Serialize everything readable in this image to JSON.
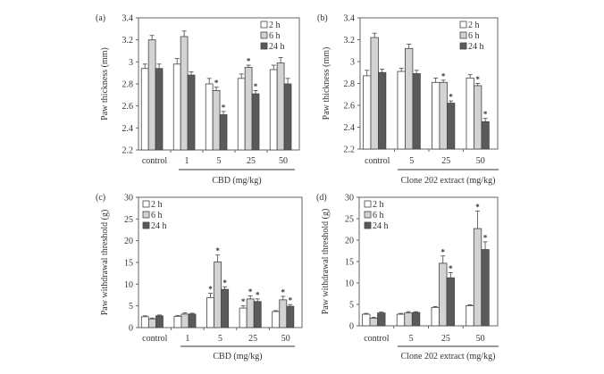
{
  "figure": {
    "colors": {
      "2h": "#ffffff",
      "6h": "#d3d3d3",
      "24h": "#5a5a5a",
      "stroke": "#444444"
    }
  },
  "chart_data": [
    {
      "id": "a",
      "type": "bar",
      "panel_label": "(a)",
      "ylabel": "Paw thickness (mm)",
      "xlabel": "CBD (mg/kg)",
      "categories": [
        "control",
        "1",
        "5",
        "25",
        "50"
      ],
      "ylim": [
        2.2,
        3.4
      ],
      "yticks": [
        "2.2",
        "2.4",
        "2.6",
        "2.8",
        "3",
        "3.2",
        "3.4"
      ],
      "legend": [
        "2 h",
        "6 h",
        "24 h"
      ],
      "legend_position": "top-right",
      "series": [
        {
          "name": "2 h",
          "values": [
            2.94,
            2.98,
            2.8,
            2.85,
            2.93
          ],
          "errors": [
            0.04,
            0.05,
            0.05,
            0.04,
            0.04
          ],
          "significant": [
            false,
            false,
            false,
            false,
            false
          ]
        },
        {
          "name": "6 h",
          "values": [
            3.2,
            3.23,
            2.74,
            2.95,
            2.99
          ],
          "errors": [
            0.04,
            0.05,
            0.03,
            0.02,
            0.05
          ],
          "significant": [
            false,
            false,
            true,
            true,
            false
          ]
        },
        {
          "name": "24 h",
          "values": [
            2.94,
            2.88,
            2.52,
            2.71,
            2.8
          ],
          "errors": [
            0.04,
            0.03,
            0.03,
            0.03,
            0.05
          ],
          "significant": [
            false,
            false,
            true,
            true,
            false
          ]
        }
      ]
    },
    {
      "id": "b",
      "type": "bar",
      "panel_label": "(b)",
      "ylabel": "Paw thickness (mm)",
      "xlabel": "Clone 202 extract (mg/kg)",
      "categories": [
        "control",
        "5",
        "25",
        "50"
      ],
      "ylim": [
        2.2,
        3.4
      ],
      "yticks": [
        "2.2",
        "2.4",
        "2.6",
        "2.8",
        "3",
        "3.2",
        "3.4"
      ],
      "legend": [
        "2 h",
        "6 h",
        "24 h"
      ],
      "legend_position": "top-right",
      "series": [
        {
          "name": "2 h",
          "values": [
            2.87,
            2.91,
            2.81,
            2.85
          ],
          "errors": [
            0.05,
            0.03,
            0.04,
            0.03
          ],
          "significant": [
            false,
            false,
            false,
            false
          ]
        },
        {
          "name": "6 h",
          "values": [
            3.22,
            3.12,
            2.81,
            2.78
          ],
          "errors": [
            0.04,
            0.04,
            0.02,
            0.02
          ],
          "significant": [
            false,
            false,
            true,
            true
          ]
        },
        {
          "name": "24 h",
          "values": [
            2.9,
            2.89,
            2.62,
            2.45
          ],
          "errors": [
            0.03,
            0.03,
            0.02,
            0.03
          ],
          "significant": [
            false,
            false,
            true,
            true
          ]
        }
      ]
    },
    {
      "id": "c",
      "type": "bar",
      "panel_label": "(c)",
      "ylabel": "Paw withdrawal threshold (g)",
      "xlabel": "CBD (mg/kg)",
      "categories": [
        "control",
        "1",
        "5",
        "25",
        "50"
      ],
      "ylim": [
        0,
        30
      ],
      "yticks": [
        "0",
        "5",
        "10",
        "15",
        "20",
        "25",
        "30"
      ],
      "legend": [
        "2 h",
        "6 h",
        "24 h"
      ],
      "legend_position": "top-left",
      "series": [
        {
          "name": "2 h",
          "values": [
            2.5,
            2.6,
            6.9,
            4.5,
            3.7
          ],
          "errors": [
            0.2,
            0.2,
            1.0,
            0.5,
            0.2
          ],
          "significant": [
            false,
            false,
            true,
            true,
            false
          ]
        },
        {
          "name": "6 h",
          "values": [
            2.0,
            3.1,
            15.1,
            6.6,
            6.4
          ],
          "errors": [
            0.2,
            0.3,
            1.6,
            0.7,
            0.8
          ],
          "significant": [
            false,
            false,
            true,
            true,
            true
          ]
        },
        {
          "name": "24 h",
          "values": [
            2.7,
            3.1,
            8.8,
            6.0,
            4.9
          ],
          "errors": [
            0.2,
            0.2,
            0.6,
            0.6,
            0.4
          ],
          "significant": [
            false,
            false,
            true,
            true,
            true
          ]
        }
      ]
    },
    {
      "id": "d",
      "type": "bar",
      "panel_label": "(d)",
      "ylabel": "Paw withdrawal threshold (g)",
      "xlabel": "Clone 202 extract (mg/kg)",
      "categories": [
        "control",
        "5",
        "25",
        "50"
      ],
      "ylim": [
        0,
        30
      ],
      "yticks": [
        "0",
        "5",
        "10",
        "15",
        "20",
        "25",
        "30"
      ],
      "legend": [
        "2 h",
        "6 h",
        "24 h"
      ],
      "legend_position": "top-left",
      "series": [
        {
          "name": "2 h",
          "values": [
            2.7,
            2.7,
            4.3,
            4.7
          ],
          "errors": [
            0.2,
            0.2,
            0.2,
            0.2
          ],
          "significant": [
            false,
            false,
            false,
            false
          ]
        },
        {
          "name": "6 h",
          "values": [
            1.8,
            3.0,
            14.6,
            22.7
          ],
          "errors": [
            0.2,
            0.3,
            1.7,
            4.1
          ],
          "significant": [
            false,
            false,
            true,
            true
          ]
        },
        {
          "name": "24 h",
          "values": [
            3.0,
            3.1,
            11.2,
            17.8
          ],
          "errors": [
            0.2,
            0.2,
            1.2,
            1.8
          ],
          "significant": [
            false,
            false,
            true,
            true
          ]
        }
      ]
    }
  ]
}
